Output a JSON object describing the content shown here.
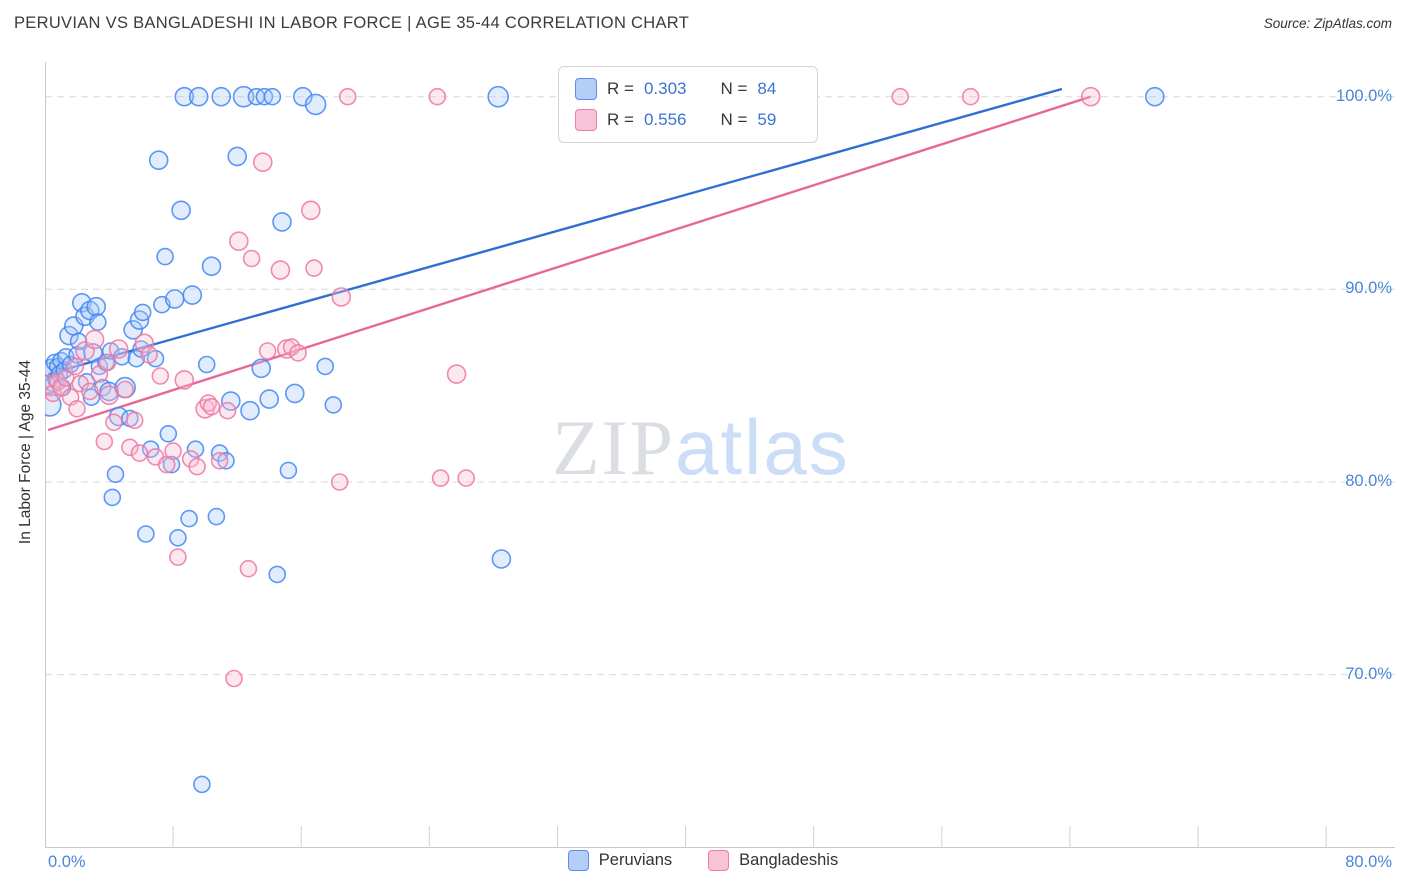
{
  "header": {
    "title": "PERUVIAN VS BANGLADESHI IN LABOR FORCE | AGE 35-44 CORRELATION CHART",
    "source": "Source: ZipAtlas.com"
  },
  "watermark": {
    "zip": "ZIP",
    "atlas": "atlas"
  },
  "legend_box": {
    "rows": [
      {
        "r_label": "R =",
        "r_value": "0.303",
        "n_label": "N =",
        "n_value": "84"
      },
      {
        "r_label": "R =",
        "r_value": "0.556",
        "n_label": "N =",
        "n_value": "59"
      }
    ]
  },
  "bottom_legend": {
    "items": [
      {
        "label": "Peruvians"
      },
      {
        "label": "Bangladeshis"
      }
    ]
  },
  "axes": {
    "y_label": "In Labor Force | Age 35-44",
    "x_left_label": "0.0%",
    "x_right_label": "80.0%"
  },
  "colors": {
    "blue_stroke": "#4285f4",
    "blue_fill": "#aac8f7",
    "pink_stroke": "#f075a0",
    "pink_fill": "#f7bed3",
    "blue_trend": "#2e6fd3",
    "pink_trend": "#e8679a",
    "axis_tick_label": "#4a86d8",
    "gridline": "#d9d9d9"
  },
  "chart_data": {
    "type": "scatter",
    "title": "PERUVIAN VS BANGLADESHI IN LABOR FORCE | AGE 35-44 CORRELATION CHART",
    "xlabel": "",
    "ylabel": "In Labor Force | Age 35-44",
    "xlim": [
      0,
      84.3
    ],
    "ylim": [
      61,
      101.8
    ],
    "grid": "horizontal-dashed",
    "legend_position": "top-center and bottom-center",
    "x_ticks": [
      8,
      16,
      24,
      32,
      40,
      48,
      56,
      64,
      72,
      80
    ],
    "y_ticks": [
      {
        "value": 100,
        "label": "100.0%"
      },
      {
        "value": 90,
        "label": "90.0%"
      },
      {
        "value": 80,
        "label": "80.0%"
      },
      {
        "value": 70,
        "label": "70.0%"
      }
    ],
    "gridlines": [
      100,
      90,
      80,
      70
    ],
    "point_format": "[x_percent, y_percent, radius_px]",
    "series": [
      {
        "name": "Peruvians",
        "R": 0.303,
        "N": 84,
        "stroke": "#4285f4",
        "fill": "#aac8f7",
        "points": [
          [
            0.2,
            85.4,
            15
          ],
          [
            0.3,
            84.0,
            11
          ],
          [
            0.4,
            85.9,
            9
          ],
          [
            0.5,
            85.1,
            8
          ],
          [
            0.6,
            86.2,
            8
          ],
          [
            0.7,
            85.3,
            8
          ],
          [
            0.8,
            86.0,
            8
          ],
          [
            0.9,
            85.6,
            8
          ],
          [
            1.0,
            86.3,
            8
          ],
          [
            1.1,
            84.9,
            8
          ],
          [
            1.2,
            85.8,
            8
          ],
          [
            1.3,
            86.5,
            8
          ],
          [
            1.5,
            87.6,
            9
          ],
          [
            1.6,
            86.1,
            8
          ],
          [
            1.8,
            88.1,
            9
          ],
          [
            2.0,
            86.6,
            8
          ],
          [
            2.1,
            87.3,
            8
          ],
          [
            2.3,
            89.3,
            9
          ],
          [
            2.5,
            88.6,
            9
          ],
          [
            2.6,
            85.2,
            8
          ],
          [
            2.8,
            88.9,
            9
          ],
          [
            2.9,
            84.4,
            8
          ],
          [
            3.0,
            86.7,
            9
          ],
          [
            3.2,
            89.1,
            9
          ],
          [
            3.3,
            88.3,
            8
          ],
          [
            3.4,
            86.0,
            8
          ],
          [
            3.6,
            84.9,
            8
          ],
          [
            3.8,
            86.2,
            8
          ],
          [
            4.0,
            84.7,
            9
          ],
          [
            4.1,
            86.8,
            8
          ],
          [
            4.2,
            79.2,
            8
          ],
          [
            4.4,
            80.4,
            8
          ],
          [
            4.6,
            83.4,
            9
          ],
          [
            4.8,
            86.5,
            8
          ],
          [
            5.0,
            84.9,
            10
          ],
          [
            5.3,
            83.3,
            8
          ],
          [
            5.5,
            87.9,
            9
          ],
          [
            5.7,
            86.4,
            8
          ],
          [
            5.9,
            88.4,
            9
          ],
          [
            6.0,
            86.9,
            8
          ],
          [
            6.1,
            88.8,
            8
          ],
          [
            6.3,
            77.3,
            8
          ],
          [
            6.6,
            81.7,
            8
          ],
          [
            6.9,
            86.4,
            8
          ],
          [
            7.1,
            96.7,
            9
          ],
          [
            7.3,
            89.2,
            8
          ],
          [
            7.5,
            91.7,
            8
          ],
          [
            7.7,
            82.5,
            8
          ],
          [
            7.9,
            80.9,
            8
          ],
          [
            8.1,
            89.5,
            9
          ],
          [
            8.3,
            77.1,
            8
          ],
          [
            8.5,
            94.1,
            9
          ],
          [
            8.7,
            100.0,
            9
          ],
          [
            9.0,
            78.1,
            8
          ],
          [
            9.2,
            89.7,
            9
          ],
          [
            9.4,
            81.7,
            8
          ],
          [
            9.6,
            100.0,
            9
          ],
          [
            9.8,
            64.3,
            8
          ],
          [
            10.1,
            86.1,
            8
          ],
          [
            10.4,
            91.2,
            9
          ],
          [
            10.7,
            78.2,
            8
          ],
          [
            10.9,
            81.5,
            8
          ],
          [
            11.0,
            100.0,
            9
          ],
          [
            11.3,
            81.1,
            8
          ],
          [
            11.6,
            84.2,
            9
          ],
          [
            12.0,
            96.9,
            9
          ],
          [
            12.4,
            100.0,
            10
          ],
          [
            12.8,
            83.7,
            9
          ],
          [
            13.2,
            100.0,
            8
          ],
          [
            13.5,
            85.9,
            9
          ],
          [
            13.7,
            100.0,
            8
          ],
          [
            14.0,
            84.3,
            9
          ],
          [
            14.2,
            100.0,
            8
          ],
          [
            14.5,
            75.2,
            8
          ],
          [
            14.8,
            93.5,
            9
          ],
          [
            15.2,
            80.6,
            8
          ],
          [
            15.6,
            84.6,
            9
          ],
          [
            16.1,
            100.0,
            9
          ],
          [
            16.9,
            99.6,
            10
          ],
          [
            17.5,
            86.0,
            8
          ],
          [
            18.0,
            84.0,
            8
          ],
          [
            28.3,
            100.0,
            10
          ],
          [
            28.5,
            76.0,
            9
          ],
          [
            69.3,
            100.0,
            9
          ]
        ]
      },
      {
        "name": "Bangladeshis",
        "R": 0.556,
        "N": 59,
        "stroke": "#f075a0",
        "fill": "#f7bed3",
        "points": [
          [
            0.3,
            85.0,
            10
          ],
          [
            0.5,
            84.6,
            8
          ],
          [
            0.8,
            85.2,
            8
          ],
          [
            1.0,
            84.9,
            8
          ],
          [
            1.3,
            85.4,
            8
          ],
          [
            1.6,
            84.4,
            8
          ],
          [
            1.9,
            86.0,
            8
          ],
          [
            2.0,
            83.8,
            8
          ],
          [
            2.2,
            85.1,
            8
          ],
          [
            2.5,
            86.8,
            9
          ],
          [
            2.8,
            84.7,
            8
          ],
          [
            3.1,
            87.4,
            9
          ],
          [
            3.4,
            85.6,
            8
          ],
          [
            3.7,
            82.1,
            8
          ],
          [
            3.9,
            86.2,
            8
          ],
          [
            4.0,
            84.5,
            9
          ],
          [
            4.3,
            83.1,
            8
          ],
          [
            4.6,
            86.9,
            9
          ],
          [
            5.0,
            84.8,
            8
          ],
          [
            5.3,
            81.8,
            8
          ],
          [
            5.6,
            83.2,
            8
          ],
          [
            5.9,
            81.5,
            8
          ],
          [
            6.2,
            87.2,
            9
          ],
          [
            6.5,
            86.6,
            8
          ],
          [
            6.9,
            81.3,
            8
          ],
          [
            7.2,
            85.5,
            8
          ],
          [
            7.6,
            80.9,
            8
          ],
          [
            8.0,
            81.6,
            8
          ],
          [
            8.3,
            76.1,
            8
          ],
          [
            8.7,
            85.3,
            9
          ],
          [
            9.1,
            81.2,
            8
          ],
          [
            9.5,
            80.8,
            8
          ],
          [
            10.0,
            83.8,
            9
          ],
          [
            10.2,
            84.1,
            8
          ],
          [
            10.4,
            83.9,
            8
          ],
          [
            10.9,
            81.1,
            8
          ],
          [
            11.4,
            83.7,
            8
          ],
          [
            11.8,
            69.8,
            8
          ],
          [
            12.1,
            92.5,
            9
          ],
          [
            12.7,
            75.5,
            8
          ],
          [
            12.9,
            91.6,
            8
          ],
          [
            13.6,
            96.6,
            9
          ],
          [
            13.9,
            86.8,
            8
          ],
          [
            14.7,
            91.0,
            9
          ],
          [
            15.1,
            86.9,
            9
          ],
          [
            15.4,
            87.0,
            8
          ],
          [
            15.8,
            86.7,
            8
          ],
          [
            16.6,
            94.1,
            9
          ],
          [
            16.8,
            91.1,
            8
          ],
          [
            18.4,
            80.0,
            8
          ],
          [
            18.5,
            89.6,
            9
          ],
          [
            18.9,
            100.0,
            8
          ],
          [
            24.5,
            100.0,
            8
          ],
          [
            24.7,
            80.2,
            8
          ],
          [
            25.7,
            85.6,
            9
          ],
          [
            26.3,
            80.2,
            8
          ],
          [
            53.4,
            100.0,
            8
          ],
          [
            57.8,
            100.0,
            8
          ],
          [
            65.3,
            100.0,
            9
          ]
        ]
      }
    ],
    "trend_lines": [
      {
        "series": "Peruvians",
        "color": "#2e6fd3",
        "x1": 0.2,
        "y1": 85.6,
        "x2": 63.5,
        "y2": 100.4
      },
      {
        "series": "Bangladeshis",
        "color": "#e8679a",
        "x1": 0.2,
        "y1": 82.7,
        "x2": 65.3,
        "y2": 100.0
      }
    ]
  }
}
